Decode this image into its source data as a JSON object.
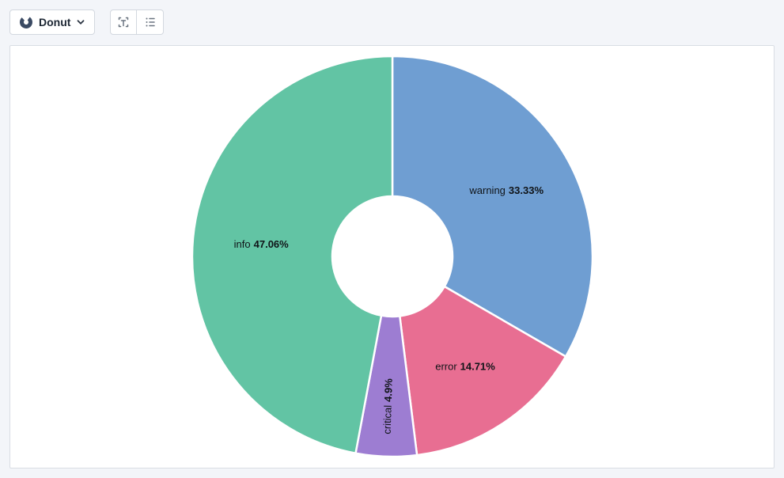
{
  "toolbar": {
    "chart_type_button": {
      "label": "Donut",
      "icon": "donut-chart-icon",
      "chevron": "chevron-down-icon"
    },
    "label_toggle_button": {
      "icon": "text-label-toggle-icon"
    },
    "legend_toggle_button": {
      "icon": "legend-list-toggle-icon"
    }
  },
  "colors": {
    "page_background": "#f3f5f9",
    "panel_background": "#ffffff",
    "panel_border": "#d9dde4",
    "button_border": "#d3d8df",
    "toolbar_icon": "#6a7480",
    "slice_border": "#ffffff",
    "label_text": "#101418"
  },
  "chart_data": {
    "type": "pie",
    "variant": "donut",
    "title": "",
    "legend": "none",
    "grid": false,
    "start_angle_deg": 0,
    "direction": "clockwise",
    "inner_radius_ratio": 0.3,
    "label_position": "inside",
    "slices": [
      {
        "label": "warning",
        "value": 33.33,
        "percent_label": "33.33%",
        "color": "#6f9ed2"
      },
      {
        "label": "error",
        "value": 14.71,
        "percent_label": "14.71%",
        "color": "#e86e92"
      },
      {
        "label": "critical",
        "value": 4.9,
        "percent_label": "4.9%",
        "color": "#9d7dd2"
      },
      {
        "label": "info",
        "value": 47.06,
        "percent_label": "47.06%",
        "color": "#62c4a4"
      }
    ]
  }
}
